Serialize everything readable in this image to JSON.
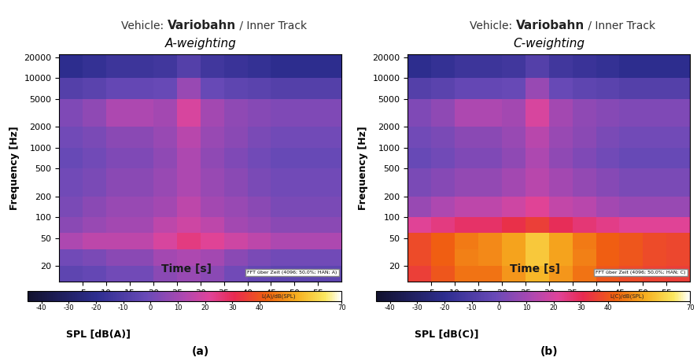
{
  "chart_data": [
    {
      "type": "heatmap",
      "panel_label": "(a)",
      "title": "Vehicle: Variobahn / Inner Track",
      "title_bold": "Variobahn",
      "subtitle": "A-weighting",
      "xlabel": "Time [s]",
      "ylabel": "Frequency [Hz]",
      "xlim": [
        0,
        60
      ],
      "xticks": [
        5,
        10,
        15,
        20,
        25,
        30,
        35,
        40,
        45,
        50,
        55
      ],
      "log": "y",
      "ylim": [
        12,
        22000
      ],
      "yticks": [
        20,
        50,
        100,
        200,
        500,
        1000,
        2000,
        5000,
        10000,
        20000
      ],
      "x_edges": [
        0,
        5,
        10,
        15,
        20,
        25,
        30,
        35,
        40,
        45,
        50,
        55,
        60
      ],
      "y_edges": [
        12,
        20,
        35,
        60,
        100,
        200,
        500,
        1000,
        2000,
        5000,
        10000,
        22000
      ],
      "cells": [
        [
          -5,
          -3,
          0,
          0,
          5,
          8,
          5,
          0,
          -3,
          -5,
          -5,
          -5
        ],
        [
          0,
          2,
          5,
          5,
          10,
          12,
          10,
          5,
          2,
          0,
          0,
          0
        ],
        [
          12,
          15,
          15,
          15,
          20,
          25,
          22,
          18,
          15,
          12,
          12,
          12
        ],
        [
          5,
          8,
          10,
          10,
          15,
          18,
          15,
          10,
          8,
          5,
          5,
          5
        ],
        [
          2,
          5,
          8,
          8,
          10,
          15,
          10,
          8,
          5,
          2,
          2,
          2
        ],
        [
          0,
          2,
          5,
          5,
          8,
          12,
          8,
          5,
          2,
          0,
          0,
          0
        ],
        [
          -2,
          0,
          3,
          3,
          6,
          12,
          6,
          3,
          0,
          -2,
          -2,
          -2
        ],
        [
          0,
          2,
          5,
          5,
          8,
          14,
          8,
          5,
          2,
          0,
          0,
          0
        ],
        [
          3,
          6,
          12,
          12,
          10,
          20,
          10,
          6,
          4,
          3,
          3,
          3
        ],
        [
          -8,
          -6,
          -3,
          -3,
          -2,
          8,
          -2,
          -5,
          -6,
          -8,
          -8,
          -8
        ],
        [
          -20,
          -18,
          -15,
          -15,
          -14,
          -8,
          -14,
          -16,
          -18,
          -20,
          -20,
          -20
        ]
      ],
      "colorbar_range": [
        -45,
        70
      ],
      "colorbar_ticks": [
        -40,
        -30,
        -20,
        -10,
        0,
        10,
        20,
        30,
        40,
        70
      ],
      "colorbar_label": "SPL [dB(A)]",
      "colorbar_unit_text": "L(A)/dB(SPL)",
      "fft_text": "FFT über Zeit (4096; 50,0%; HAN; A)"
    },
    {
      "type": "heatmap",
      "panel_label": "(b)",
      "title": "Vehicle: Variobahn / Inner Track",
      "title_bold": "Variobahn",
      "subtitle": "C-weighting",
      "xlabel": "Time [s]",
      "ylabel": "Frequency [Hz]",
      "xlim": [
        0,
        60
      ],
      "xticks": [
        5,
        10,
        15,
        20,
        25,
        30,
        35,
        40,
        45,
        50,
        55
      ],
      "log": "y",
      "ylim": [
        12,
        22000
      ],
      "yticks": [
        20,
        50,
        100,
        200,
        500,
        1000,
        2000,
        5000,
        10000,
        20000
      ],
      "x_edges": [
        0,
        5,
        10,
        15,
        20,
        25,
        30,
        35,
        40,
        45,
        50,
        55,
        60
      ],
      "y_edges": [
        12,
        20,
        35,
        60,
        100,
        200,
        500,
        1000,
        2000,
        5000,
        10000,
        22000
      ],
      "cells": [
        [
          35,
          40,
          45,
          45,
          50,
          55,
          50,
          45,
          40,
          38,
          36,
          35
        ],
        [
          38,
          42,
          47,
          48,
          52,
          58,
          52,
          47,
          42,
          40,
          38,
          37
        ],
        [
          38,
          42,
          46,
          48,
          52,
          58,
          52,
          46,
          42,
          40,
          38,
          37
        ],
        [
          22,
          25,
          28,
          28,
          32,
          35,
          30,
          26,
          24,
          22,
          22,
          22
        ],
        [
          8,
          12,
          15,
          15,
          18,
          22,
          16,
          14,
          10,
          8,
          8,
          8
        ],
        [
          2,
          4,
          7,
          7,
          10,
          14,
          10,
          7,
          4,
          2,
          2,
          2
        ],
        [
          -2,
          0,
          3,
          3,
          6,
          12,
          6,
          3,
          0,
          -2,
          -2,
          -2
        ],
        [
          0,
          2,
          5,
          5,
          8,
          14,
          8,
          5,
          2,
          0,
          0,
          0
        ],
        [
          3,
          6,
          12,
          12,
          10,
          20,
          10,
          6,
          4,
          3,
          3,
          3
        ],
        [
          -8,
          -6,
          -3,
          -3,
          -2,
          8,
          -2,
          -5,
          -6,
          -8,
          -8,
          -8
        ],
        [
          -20,
          -18,
          -15,
          -15,
          -14,
          -8,
          -14,
          -16,
          -18,
          -20,
          -20,
          -20
        ]
      ],
      "colorbar_range": [
        -45,
        70
      ],
      "colorbar_ticks": [
        -40,
        -30,
        -20,
        -10,
        0,
        10,
        20,
        30,
        40,
        70
      ],
      "colorbar_label": "SPL [dB(C)]",
      "colorbar_unit_text": "L(C)/dB(SPL)",
      "fft_text": "FFT über Zeit (4096; 50,0%; HAN; C)"
    }
  ]
}
